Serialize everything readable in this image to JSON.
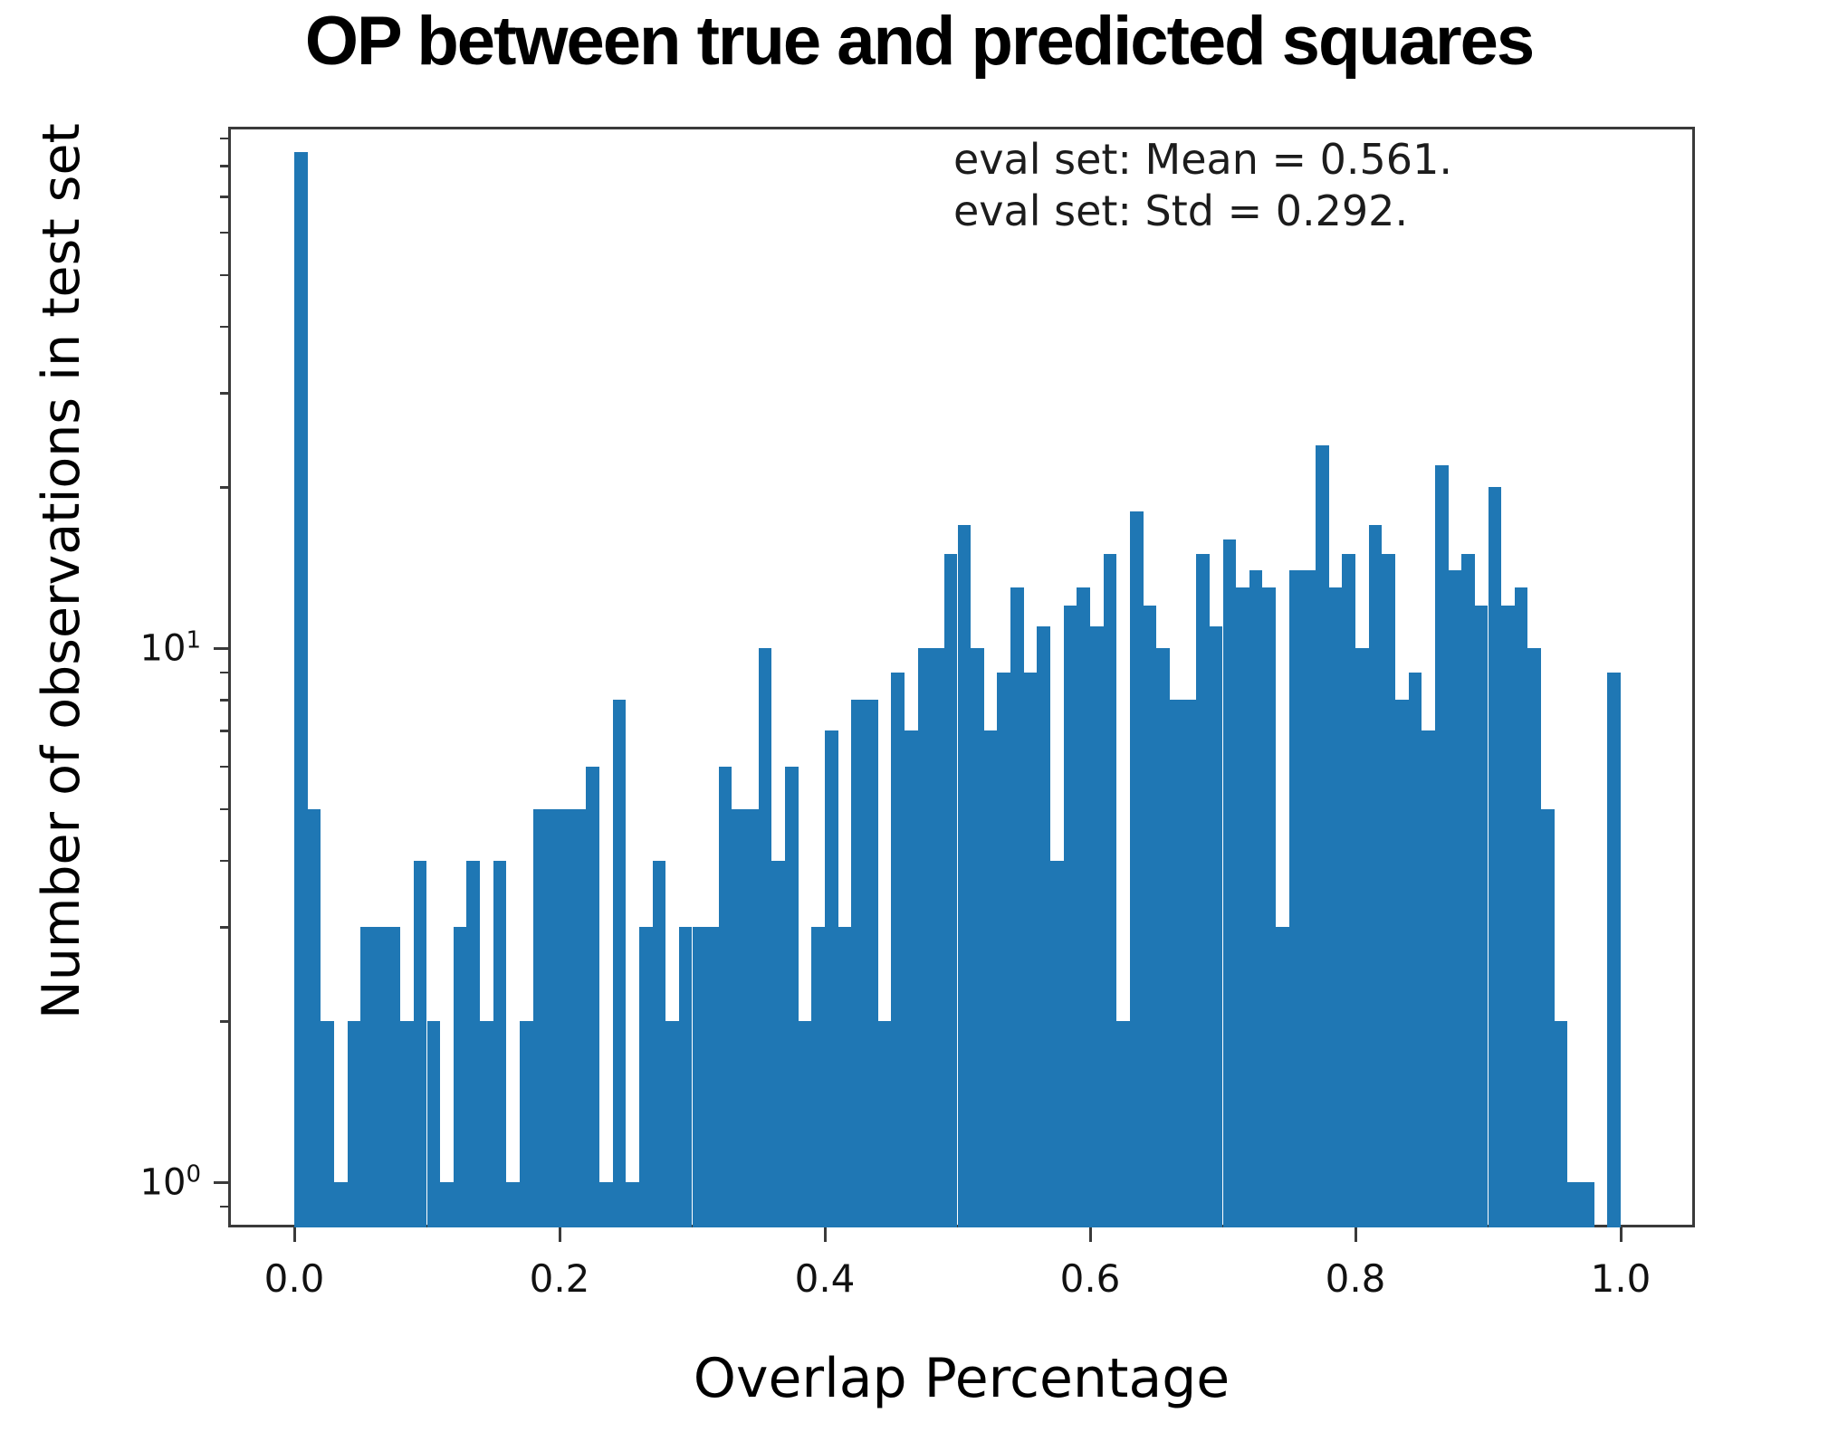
{
  "title": "OP between true and predicted squares",
  "annotation": {
    "line1": "eval set: Mean = 0.561.",
    "line2": "eval set: Std = 0.292."
  },
  "axes": {
    "xlabel": "Overlap Percentage",
    "ylabel": "Number of observations in test set",
    "x_tick_labels": [
      "0.0",
      "0.2",
      "0.4",
      "0.6",
      "0.8",
      "1.0"
    ],
    "x_tick_values": [
      0.0,
      0.2,
      0.4,
      0.6,
      0.8,
      1.0
    ],
    "y_tick_labels": [
      {
        "base": "10",
        "exp": "1",
        "value": 10
      },
      {
        "base": "10",
        "exp": "0",
        "value": 1
      }
    ]
  },
  "colors": {
    "bar": "#1f77b4",
    "spine": "#3a3a3a",
    "text": "#000000",
    "annotation_text": "#1c1c1c"
  },
  "chart_data": {
    "type": "bar",
    "subtype": "histogram",
    "title": "OP between true and predicted squares",
    "xlabel": "Overlap Percentage",
    "ylabel": "Number of observations in test set",
    "yscale": "log",
    "bin_start": 0.0,
    "bin_width": 0.01,
    "xlim": [
      -0.05,
      1.056
    ],
    "ylim": [
      0.82,
      95
    ],
    "minor_ticks_y": [
      20,
      30,
      40,
      50,
      60,
      70,
      80,
      90,
      9,
      8,
      7,
      6,
      5,
      4,
      3,
      2,
      0.9
    ],
    "legend_position": "none",
    "grid": false,
    "counts": [
      85,
      5,
      2,
      1,
      2,
      3,
      3,
      3,
      2,
      4,
      2,
      1,
      3,
      4,
      2,
      4,
      1,
      2,
      5,
      5,
      5,
      5,
      6,
      1,
      8,
      1,
      3,
      4,
      2,
      3,
      3,
      3,
      6,
      5,
      5,
      10,
      4,
      6,
      2,
      3,
      7,
      3,
      8,
      8,
      2,
      9,
      7,
      10,
      10,
      15,
      17,
      10,
      7,
      9,
      13,
      9,
      11,
      4,
      12,
      13,
      11,
      15,
      2,
      18,
      12,
      10,
      8,
      8,
      15,
      11,
      16,
      13,
      14,
      13,
      3,
      14,
      14,
      24,
      13,
      15,
      10,
      17,
      15,
      8,
      9,
      7,
      22,
      14,
      15,
      12,
      20,
      12,
      13,
      10,
      5,
      2,
      1,
      1,
      0,
      9
    ]
  }
}
